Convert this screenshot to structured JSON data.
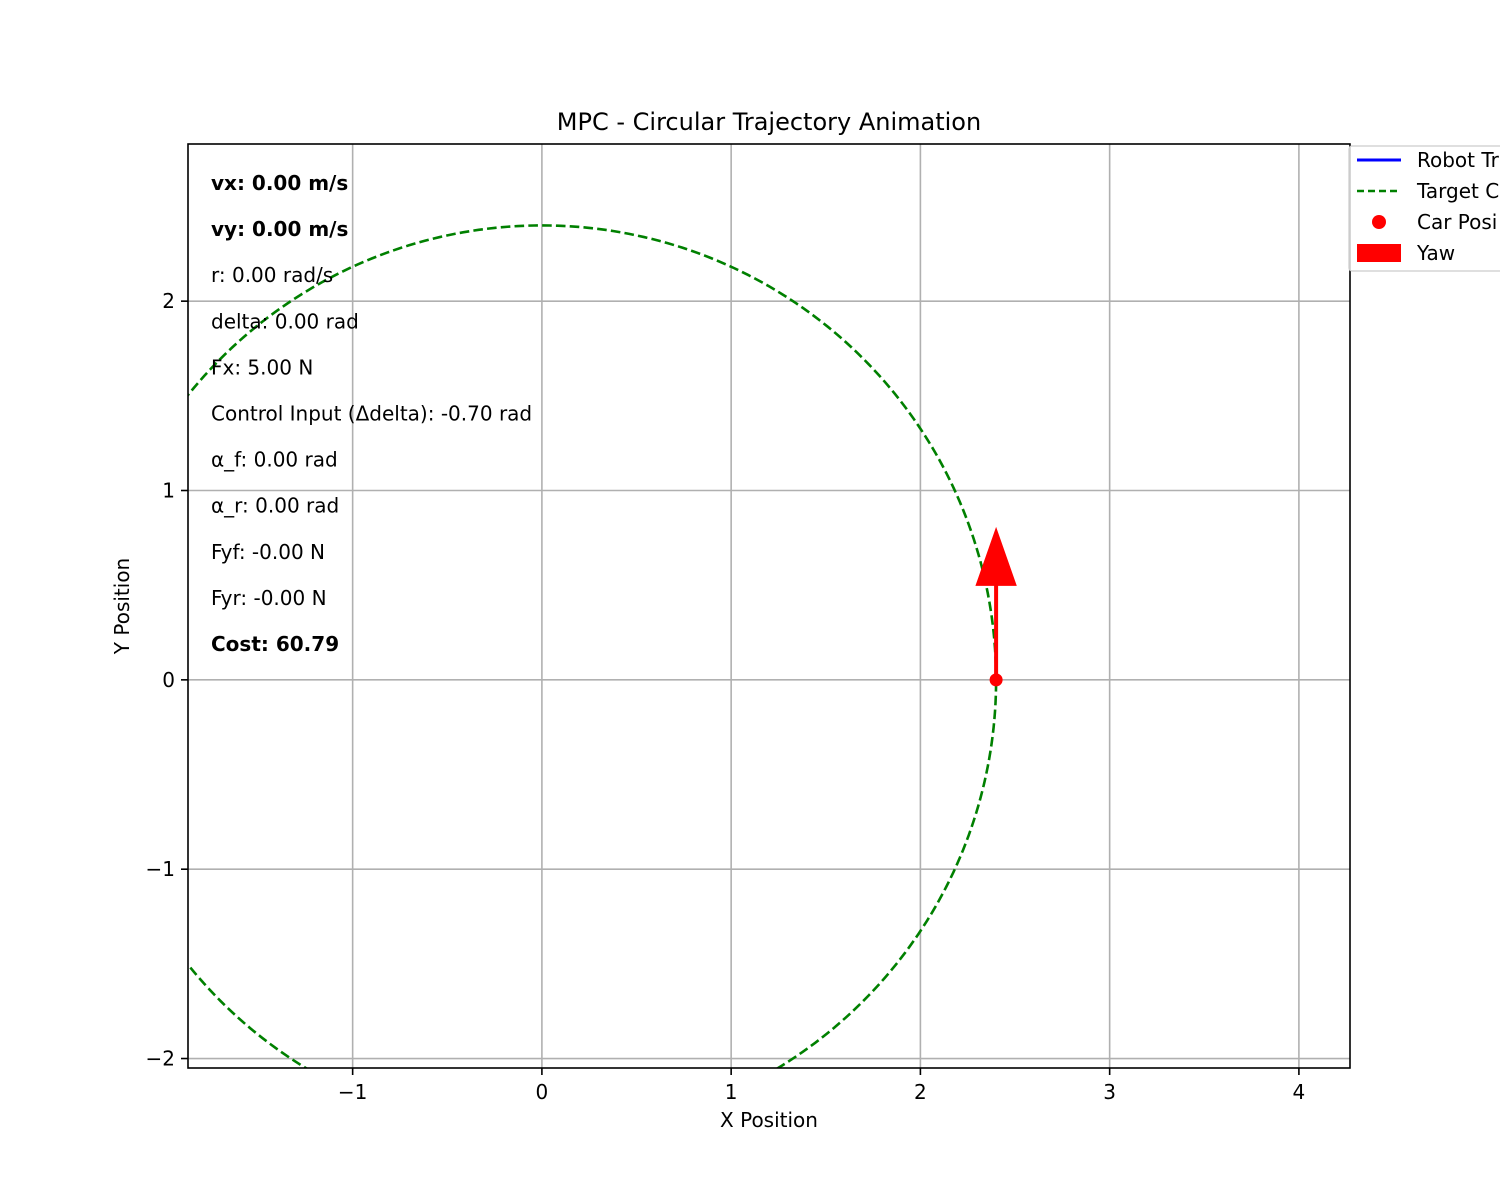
{
  "chart_data": {
    "type": "line",
    "title": "MPC - Circular Trajectory Animation",
    "xlabel": "X Position",
    "ylabel": "Y Position",
    "xlim": [
      -1.87,
      4.27
    ],
    "ylim": [
      -2.05,
      2.83
    ],
    "xticks": [
      -1,
      0,
      1,
      2,
      3,
      4
    ],
    "yticks": [
      -2,
      -1,
      0,
      1,
      2
    ],
    "xtick_labels": [
      "−1",
      "0",
      "1",
      "2",
      "3",
      "4"
    ],
    "ytick_labels": [
      "−2",
      "−1",
      "0",
      "1",
      "2"
    ],
    "grid": true,
    "legend_placement": "upper-right-outside",
    "series": [
      {
        "name": "Robot Trajectory",
        "color": "#0000ff",
        "style": "solid",
        "points": []
      },
      {
        "name": "Target Circle",
        "color": "#008000",
        "style": "dashed",
        "center": [
          0,
          0
        ],
        "radius": 2.4
      },
      {
        "name": "Car Position",
        "color": "#ff0000",
        "style": "marker",
        "points": [
          [
            2.4,
            0
          ]
        ]
      },
      {
        "name": "Yaw",
        "color": "#ff0000",
        "style": "arrow",
        "origin": [
          2.4,
          0
        ],
        "direction_deg": 90,
        "length": 0.8
      }
    ],
    "legend_entries": [
      "Robot Tr",
      "Target C",
      "Car Posi",
      "Yaw"
    ]
  },
  "info_panel": [
    {
      "text": "vx: 0.00 m/s",
      "bold": true
    },
    {
      "text": "vy: 0.00 m/s",
      "bold": true
    },
    {
      "text": "r: 0.00 rad/s",
      "bold": false
    },
    {
      "text": "delta: 0.00 rad",
      "bold": false
    },
    {
      "text": "Fx: 5.00 N",
      "bold": false
    },
    {
      "text": "Control Input (Δdelta): -0.70 rad",
      "bold": false
    },
    {
      "text": "α_f: 0.00 rad",
      "bold": false
    },
    {
      "text": "α_r: 0.00 rad",
      "bold": false
    },
    {
      "text": "Fyf: -0.00 N",
      "bold": false
    },
    {
      "text": "Fyr: -0.00 N",
      "bold": false
    },
    {
      "text": "Cost: 60.79",
      "bold": true
    }
  ]
}
